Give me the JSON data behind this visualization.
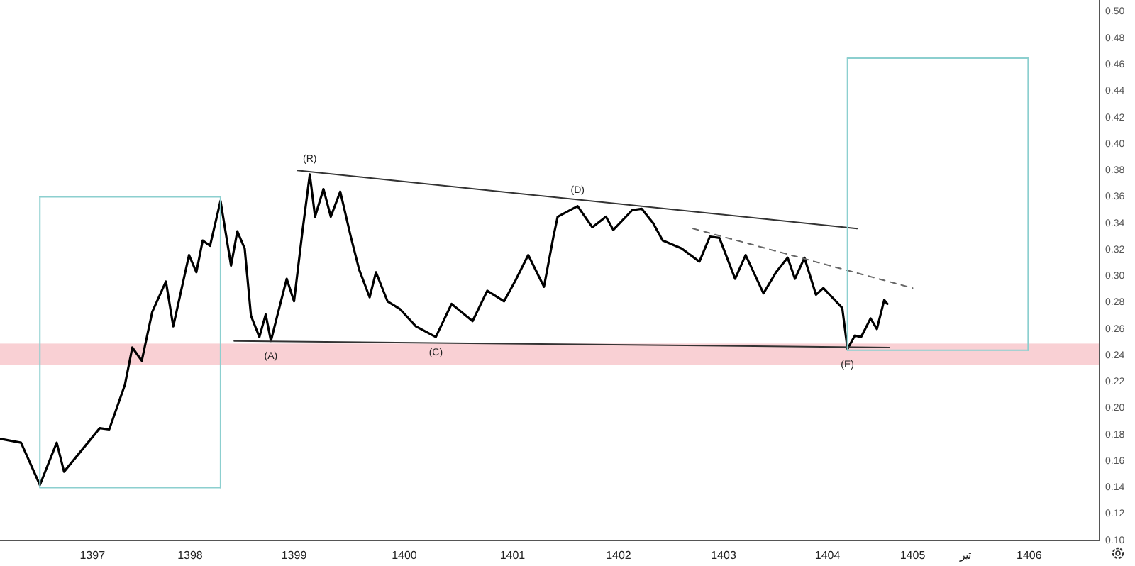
{
  "chart_data": {
    "type": "line",
    "xlim": [
      1396.12,
      1406.59
    ],
    "ylim": [
      0.1,
      0.509
    ],
    "xticks": [
      {
        "value": 1397.0,
        "label": "1397"
      },
      {
        "value": 1397.93,
        "label": "1398"
      },
      {
        "value": 1398.92,
        "label": "1399"
      },
      {
        "value": 1399.97,
        "label": "1400"
      },
      {
        "value": 1401.0,
        "label": "1401"
      },
      {
        "value": 1402.01,
        "label": "1402"
      },
      {
        "value": 1403.01,
        "label": "1403"
      },
      {
        "value": 1404.0,
        "label": "1404"
      },
      {
        "value": 1404.81,
        "label": "1405"
      },
      {
        "value": 1405.31,
        "label": "تیر"
      },
      {
        "value": 1405.92,
        "label": "1406"
      }
    ],
    "yticks": [
      {
        "value": 0.1,
        "label": "0.10"
      },
      {
        "value": 0.12,
        "label": "0.12"
      },
      {
        "value": 0.14,
        "label": "0.14"
      },
      {
        "value": 0.16,
        "label": "0.16"
      },
      {
        "value": 0.18,
        "label": "0.18"
      },
      {
        "value": 0.2,
        "label": "0.20"
      },
      {
        "value": 0.22,
        "label": "0.22"
      },
      {
        "value": 0.24,
        "label": "0.24"
      },
      {
        "value": 0.26,
        "label": "0.26"
      },
      {
        "value": 0.28,
        "label": "0.28"
      },
      {
        "value": 0.3,
        "label": "0.30"
      },
      {
        "value": 0.32,
        "label": "0.32"
      },
      {
        "value": 0.34,
        "label": "0.34"
      },
      {
        "value": 0.36,
        "label": "0.36"
      },
      {
        "value": 0.38,
        "label": "0.38"
      },
      {
        "value": 0.4,
        "label": "0.40"
      },
      {
        "value": 0.42,
        "label": "0.42"
      },
      {
        "value": 0.44,
        "label": "0.44"
      },
      {
        "value": 0.46,
        "label": "0.46"
      },
      {
        "value": 0.48,
        "label": "0.48"
      },
      {
        "value": 0.5,
        "label": "0.50"
      }
    ],
    "grid": false,
    "marker": "none",
    "bands": [
      {
        "axis": "y",
        "from": 0.233,
        "to": 0.249,
        "color": "#f8c8cc"
      }
    ],
    "series": [
      {
        "color": "#000000",
        "line_style": "solid",
        "x": [
          1396.12,
          1396.32,
          1396.5,
          1396.66,
          1396.73,
          1397.07,
          1397.16,
          1397.31,
          1397.38,
          1397.47,
          1397.57,
          1397.7,
          1397.77,
          1397.92,
          1397.99,
          1398.05,
          1398.12,
          1398.22,
          1398.32,
          1398.38,
          1398.45,
          1398.51,
          1398.59,
          1398.65,
          1398.7,
          1398.76,
          1398.85,
          1398.92,
          1399.0,
          1399.07,
          1399.12,
          1399.2,
          1399.27,
          1399.36,
          1399.46,
          1399.54,
          1399.64,
          1399.7,
          1399.81,
          1399.93,
          1400.08,
          1400.27,
          1400.42,
          1400.62,
          1400.76,
          1400.92,
          1401.03,
          1401.15,
          1401.3,
          1401.39,
          1401.43,
          1401.62,
          1401.76,
          1401.89,
          1401.96,
          1402.14,
          1402.23,
          1402.34,
          1402.43,
          1402.61,
          1402.78,
          1402.88,
          1402.97,
          1403.12,
          1403.22,
          1403.39,
          1403.51,
          1403.62,
          1403.69,
          1403.78,
          1403.89,
          1403.96,
          1404.14,
          1404.19,
          1404.26,
          1404.32,
          1404.41,
          1404.47,
          1404.54,
          1404.57
        ],
        "values": [
          0.177,
          0.174,
          0.142,
          0.174,
          0.152,
          0.185,
          0.184,
          0.218,
          0.246,
          0.236,
          0.273,
          0.296,
          0.262,
          0.316,
          0.303,
          0.327,
          0.323,
          0.357,
          0.308,
          0.334,
          0.321,
          0.27,
          0.254,
          0.271,
          0.251,
          0.27,
          0.298,
          0.281,
          0.334,
          0.377,
          0.345,
          0.366,
          0.345,
          0.364,
          0.33,
          0.305,
          0.284,
          0.303,
          0.281,
          0.275,
          0.262,
          0.254,
          0.279,
          0.266,
          0.289,
          0.281,
          0.297,
          0.316,
          0.292,
          0.33,
          0.345,
          0.353,
          0.337,
          0.345,
          0.335,
          0.35,
          0.351,
          0.34,
          0.327,
          0.321,
          0.311,
          0.33,
          0.329,
          0.298,
          0.316,
          0.287,
          0.303,
          0.314,
          0.298,
          0.314,
          0.286,
          0.291,
          0.276,
          0.245,
          0.255,
          0.254,
          0.268,
          0.26,
          0.282,
          0.279
        ]
      },
      {
        "color": "#333333",
        "line_style": "solid",
        "x": [
          1398.95,
          1404.28
        ],
        "values": [
          0.38,
          0.336
        ]
      },
      {
        "color": "#333333",
        "line_style": "solid",
        "x": [
          1398.35,
          1404.59
        ],
        "values": [
          0.251,
          0.246
        ]
      },
      {
        "color": "#666666",
        "line_style": "dashed",
        "x": [
          1402.72,
          1404.81
        ],
        "values": [
          0.336,
          0.291
        ]
      },
      {
        "color": "#8ccfcf",
        "line_style": "solid",
        "x": [
          1396.5,
          1398.22
        ],
        "values": [
          0.36,
          0.36
        ]
      },
      {
        "color": "#8ccfcf",
        "line_style": "solid",
        "x": [
          1396.5,
          1398.22
        ],
        "values": [
          0.14,
          0.14
        ]
      },
      {
        "color": "#8ccfcf",
        "line_style": "solid",
        "x": [
          1396.5,
          1396.5
        ],
        "values": [
          0.14,
          0.36
        ]
      },
      {
        "color": "#8ccfcf",
        "line_style": "solid",
        "x": [
          1398.22,
          1398.22
        ],
        "values": [
          0.14,
          0.36
        ]
      },
      {
        "color": "#8ccfcf",
        "line_style": "solid",
        "x": [
          1404.19,
          1405.91
        ],
        "values": [
          0.465,
          0.465
        ]
      },
      {
        "color": "#8ccfcf",
        "line_style": "solid",
        "x": [
          1404.19,
          1405.91
        ],
        "values": [
          0.244,
          0.244
        ]
      },
      {
        "color": "#8ccfcf",
        "line_style": "solid",
        "x": [
          1404.19,
          1404.19
        ],
        "values": [
          0.244,
          0.465
        ]
      },
      {
        "color": "#8ccfcf",
        "line_style": "solid",
        "x": [
          1405.91,
          1405.91
        ],
        "values": [
          0.244,
          0.465
        ]
      }
    ],
    "annotations": [
      {
        "text": "(R)",
        "x": 1399.07,
        "y": 0.377
      },
      {
        "text": "(A)",
        "x": 1398.7,
        "y": 0.251
      },
      {
        "text": "(C)",
        "x": 1400.27,
        "y": 0.254
      },
      {
        "text": "(D)",
        "x": 1401.62,
        "y": 0.353
      },
      {
        "text": "(E)",
        "x": 1404.19,
        "y": 0.245
      }
    ]
  }
}
